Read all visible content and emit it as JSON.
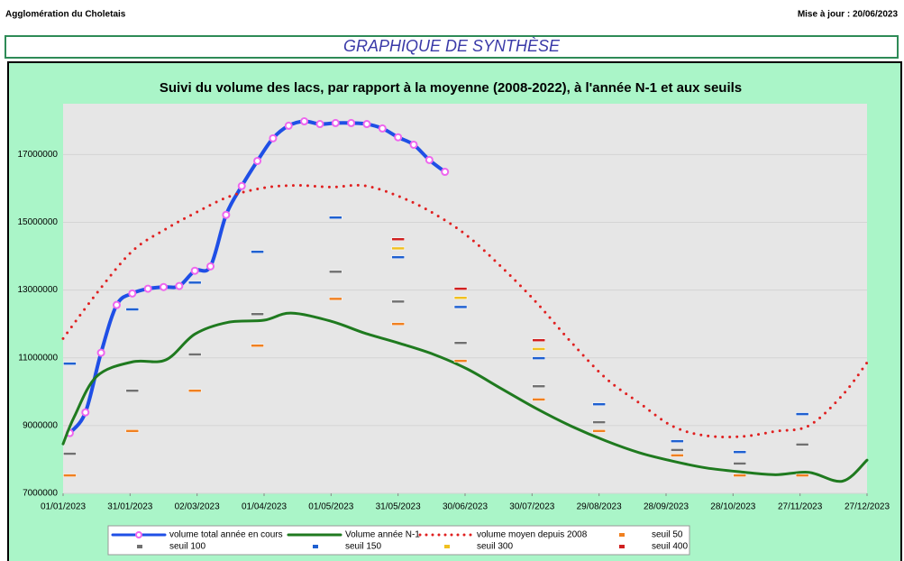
{
  "header": {
    "left": "Agglomération du Choletais",
    "right": "Mise à jour : 20/06/2023"
  },
  "banner": "GRAPHIQUE DE SYNTHÈSE",
  "chart_data": {
    "type": "line",
    "title": "Suivi du volume des lacs, par rapport à la moyenne (2008-2022), à l'année N-1 et aux seuils",
    "xlim": [
      "2023-01-01",
      "2023-12-27"
    ],
    "xticks": [
      {
        "value": "2023-01-01",
        "label": "01/01/2023"
      },
      {
        "value": "2023-01-31",
        "label": "31/01/2023"
      },
      {
        "value": "2023-03-02",
        "label": "02/03/2023"
      },
      {
        "value": "2023-04-01",
        "label": "01/04/2023"
      },
      {
        "value": "2023-05-01",
        "label": "01/05/2023"
      },
      {
        "value": "2023-05-31",
        "label": "31/05/2023"
      },
      {
        "value": "2023-06-30",
        "label": "30/06/2023"
      },
      {
        "value": "2023-07-30",
        "label": "30/07/2023"
      },
      {
        "value": "2023-08-29",
        "label": "29/08/2023"
      },
      {
        "value": "2023-09-28",
        "label": "28/09/2023"
      },
      {
        "value": "2023-10-28",
        "label": "28/10/2023"
      },
      {
        "value": "2023-11-27",
        "label": "27/11/2023"
      },
      {
        "value": "2023-12-27",
        "label": "27/12/2023"
      }
    ],
    "ylim": [
      7000000,
      18500000
    ],
    "yticks": [
      7000000,
      9000000,
      11000000,
      13000000,
      15000000,
      17000000
    ],
    "grid": true,
    "series": [
      {
        "name": "volume total année en cours",
        "type": "line",
        "color": "#1f4fe6",
        "marker_color": "#ee66ee",
        "x": [
          "2023-01-04",
          "2023-01-11",
          "2023-01-18",
          "2023-01-25",
          "2023-02-01",
          "2023-02-08",
          "2023-02-15",
          "2023-02-22",
          "2023-03-01",
          "2023-03-08",
          "2023-03-15",
          "2023-03-22",
          "2023-03-29",
          "2023-04-05",
          "2023-04-12",
          "2023-04-19",
          "2023-04-26",
          "2023-05-03",
          "2023-05-10",
          "2023-05-17",
          "2023-05-24",
          "2023-05-31",
          "2023-06-07",
          "2023-06-14",
          "2023-06-21"
        ],
        "values": [
          8780000,
          9390000,
          11150000,
          12560000,
          12900000,
          13040000,
          13090000,
          13120000,
          13570000,
          13700000,
          15220000,
          16070000,
          16810000,
          17480000,
          17850000,
          17980000,
          17900000,
          17930000,
          17930000,
          17900000,
          17770000,
          17510000,
          17290000,
          16840000,
          16490000
        ]
      },
      {
        "name": "Volume année N-1",
        "type": "line",
        "color": "#1f7a1f",
        "x": [
          "2023-01-01",
          "2023-01-06",
          "2023-01-16",
          "2023-02-01",
          "2023-02-16",
          "2023-03-01",
          "2023-03-16",
          "2023-04-01",
          "2023-04-13",
          "2023-05-01",
          "2023-05-16",
          "2023-06-01",
          "2023-06-16",
          "2023-07-01",
          "2023-07-16",
          "2023-08-01",
          "2023-08-16",
          "2023-09-01",
          "2023-09-16",
          "2023-10-01",
          "2023-10-16",
          "2023-11-01",
          "2023-11-16",
          "2023-12-01",
          "2023-12-16",
          "2023-12-27"
        ],
        "values": [
          8460000,
          9260000,
          10450000,
          10880000,
          10940000,
          11700000,
          12050000,
          12110000,
          12320000,
          12080000,
          11730000,
          11420000,
          11100000,
          10670000,
          10100000,
          9500000,
          9000000,
          8550000,
          8200000,
          7950000,
          7750000,
          7630000,
          7550000,
          7620000,
          7360000,
          7980000
        ]
      },
      {
        "name": "volume moyen depuis 2008",
        "type": "line",
        "dotted": true,
        "color": "#e02020",
        "x": [
          "2023-01-01",
          "2023-01-16",
          "2023-02-01",
          "2023-02-16",
          "2023-03-01",
          "2023-03-16",
          "2023-04-01",
          "2023-04-16",
          "2023-05-01",
          "2023-05-16",
          "2023-06-01",
          "2023-06-16",
          "2023-07-01",
          "2023-07-16",
          "2023-08-01",
          "2023-08-16",
          "2023-09-01",
          "2023-09-16",
          "2023-10-01",
          "2023-10-16",
          "2023-11-01",
          "2023-11-16",
          "2023-12-01",
          "2023-12-16",
          "2023-12-27"
        ],
        "values": [
          11570000,
          12900000,
          14150000,
          14800000,
          15270000,
          15750000,
          16020000,
          16090000,
          16040000,
          16080000,
          15750000,
          15260000,
          14600000,
          13700000,
          12630000,
          11500000,
          10400000,
          9670000,
          8980000,
          8700000,
          8680000,
          8830000,
          9000000,
          9900000,
          10860000
        ]
      },
      {
        "name": "seuil 50",
        "type": "scatter",
        "color": "#f08020",
        "x": [
          "2023-01-04",
          "2023-02-01",
          "2023-03-01",
          "2023-03-29",
          "2023-05-03",
          "2023-05-31",
          "2023-06-28",
          "2023-08-02",
          "2023-08-29",
          "2023-10-03",
          "2023-10-31",
          "2023-11-28"
        ],
        "values": [
          7530000,
          8840000,
          10030000,
          11360000,
          12740000,
          12000000,
          10910000,
          9770000,
          8840000,
          8120000,
          7530000,
          7530000
        ]
      },
      {
        "name": "seuil 100",
        "type": "scatter",
        "color": "#707070",
        "x": [
          "2023-01-04",
          "2023-02-01",
          "2023-03-01",
          "2023-03-29",
          "2023-05-03",
          "2023-05-31",
          "2023-06-28",
          "2023-08-02",
          "2023-08-29",
          "2023-10-03",
          "2023-10-31",
          "2023-11-28"
        ],
        "values": [
          8170000,
          10030000,
          11100000,
          12290000,
          13540000,
          12660000,
          11440000,
          10160000,
          9100000,
          8280000,
          7880000,
          8440000
        ]
      },
      {
        "name": "seuil 150",
        "type": "scatter",
        "color": "#1f60d0",
        "x": [
          "2023-01-04",
          "2023-02-01",
          "2023-03-01",
          "2023-03-29",
          "2023-05-03",
          "2023-05-31",
          "2023-06-28",
          "2023-08-02",
          "2023-08-29",
          "2023-10-03",
          "2023-10-31",
          "2023-11-28"
        ],
        "values": [
          10830000,
          12430000,
          13220000,
          14130000,
          15140000,
          13970000,
          12500000,
          10990000,
          9630000,
          8540000,
          8220000,
          9340000
        ]
      },
      {
        "name": "seuil 300",
        "type": "scatter",
        "color": "#f0c020",
        "x": [
          "2023-05-31",
          "2023-06-28",
          "2023-08-02"
        ],
        "values": [
          14230000,
          12770000,
          11260000
        ]
      },
      {
        "name": "seuil 400",
        "type": "scatter",
        "color": "#d02020",
        "x": [
          "2023-05-31",
          "2023-06-28",
          "2023-08-02"
        ],
        "values": [
          14500000,
          13040000,
          11520000
        ]
      }
    ]
  }
}
